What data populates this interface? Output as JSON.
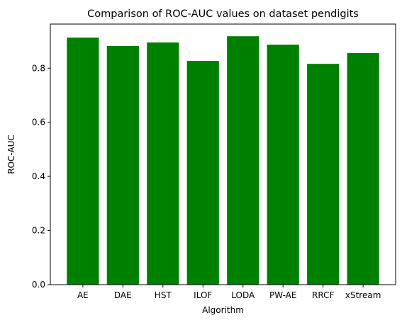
{
  "chart_data": {
    "type": "bar",
    "title": "Comparison of ROC-AUC values on dataset pendigits",
    "xlabel": "Algorithm",
    "ylabel": "ROC-AUC",
    "categories": [
      "AE",
      "DAE",
      "HST",
      "ILOF",
      "LODA",
      "PW-AE",
      "RRCF",
      "xStream"
    ],
    "values": [
      0.913,
      0.882,
      0.895,
      0.827,
      0.918,
      0.887,
      0.816,
      0.856
    ],
    "ylim": [
      0,
      0.963
    ],
    "yticks": [
      0.0,
      0.2,
      0.4,
      0.6,
      0.8
    ],
    "ytick_labels": [
      "0.0",
      "0.2",
      "0.4",
      "0.6",
      "0.8"
    ],
    "bar_color": "#008000",
    "grid": false,
    "legend": "none"
  }
}
